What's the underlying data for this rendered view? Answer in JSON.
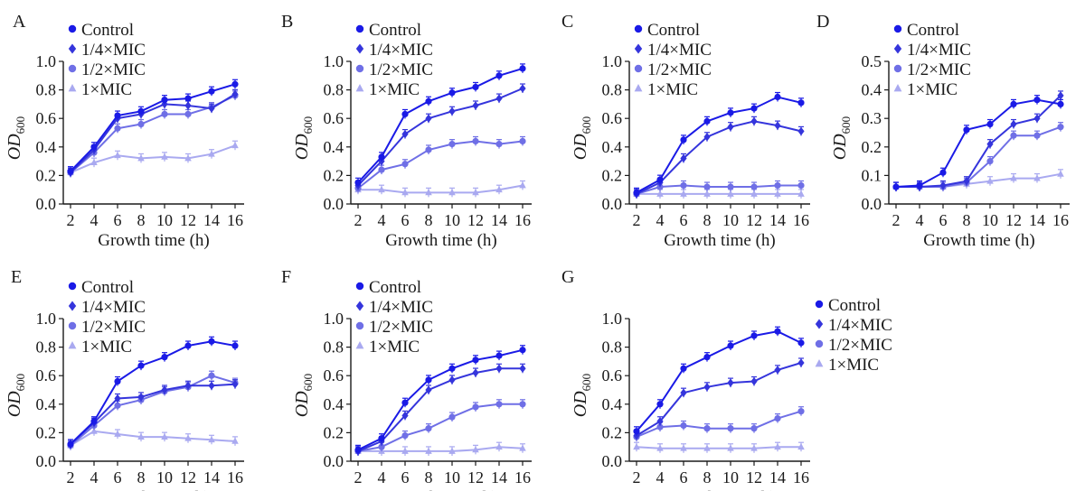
{
  "figure": {
    "x_label": "Growth time (h)",
    "y_label_main": "OD",
    "y_label_sub": "600",
    "series_styles": [
      {
        "name": "Control",
        "color": "#1a1ae6",
        "marker": "circle"
      },
      {
        "name": "1/4×MIC",
        "color": "#3535dc",
        "marker": "diamond"
      },
      {
        "name": "1/2×MIC",
        "color": "#6f6fe6",
        "marker": "circle"
      },
      {
        "name": "1×MIC",
        "color": "#a9a9f0",
        "marker": "triangle"
      }
    ]
  },
  "chart_data": [
    {
      "type": "line",
      "panel": "A",
      "x": [
        2,
        4,
        6,
        8,
        10,
        12,
        14,
        16
      ],
      "xticks": [
        "2",
        "4",
        "6",
        "8",
        "10",
        "12",
        "14",
        "16"
      ],
      "yticks": [
        "0.0",
        "0.2",
        "0.4",
        "0.6",
        "0.8",
        "1.0"
      ],
      "ylim": [
        0,
        1.0
      ],
      "legend_position": "top-left",
      "series": [
        {
          "name": "Control",
          "values": [
            0.23,
            0.4,
            0.62,
            0.65,
            0.73,
            0.74,
            0.79,
            0.84
          ]
        },
        {
          "name": "1/4×MIC",
          "values": [
            0.22,
            0.38,
            0.6,
            0.63,
            0.7,
            0.69,
            0.67,
            0.77
          ]
        },
        {
          "name": "1/2×MIC",
          "values": [
            0.22,
            0.36,
            0.53,
            0.56,
            0.63,
            0.63,
            0.68,
            0.76
          ]
        },
        {
          "name": "1×MIC",
          "values": [
            0.22,
            0.29,
            0.34,
            0.32,
            0.33,
            0.32,
            0.35,
            0.41
          ]
        }
      ]
    },
    {
      "type": "line",
      "panel": "B",
      "x": [
        2,
        4,
        6,
        8,
        10,
        12,
        14,
        16
      ],
      "xticks": [
        "2",
        "4",
        "6",
        "8",
        "10",
        "12",
        "14",
        "16"
      ],
      "yticks": [
        "0.0",
        "0.2",
        "0.4",
        "0.6",
        "0.8",
        "1.0"
      ],
      "ylim": [
        0,
        1.0
      ],
      "legend_position": "top-left",
      "series": [
        {
          "name": "Control",
          "values": [
            0.15,
            0.33,
            0.63,
            0.72,
            0.78,
            0.82,
            0.9,
            0.95
          ]
        },
        {
          "name": "1/4×MIC",
          "values": [
            0.13,
            0.3,
            0.49,
            0.6,
            0.65,
            0.69,
            0.74,
            0.81
          ]
        },
        {
          "name": "1/2×MIC",
          "values": [
            0.11,
            0.24,
            0.28,
            0.38,
            0.42,
            0.44,
            0.42,
            0.44
          ]
        },
        {
          "name": "1×MIC",
          "values": [
            0.1,
            0.1,
            0.08,
            0.08,
            0.08,
            0.08,
            0.1,
            0.13
          ]
        }
      ]
    },
    {
      "type": "line",
      "panel": "C",
      "x": [
        2,
        4,
        6,
        8,
        10,
        12,
        14,
        16
      ],
      "xticks": [
        "2",
        "4",
        "6",
        "8",
        "10",
        "12",
        "14",
        "16"
      ],
      "yticks": [
        "0.0",
        "0.2",
        "0.4",
        "0.6",
        "0.8",
        "1.0"
      ],
      "ylim": [
        0,
        1.0
      ],
      "legend_position": "top-left",
      "series": [
        {
          "name": "Control",
          "values": [
            0.08,
            0.17,
            0.45,
            0.58,
            0.64,
            0.67,
            0.75,
            0.71
          ]
        },
        {
          "name": "1/4×MIC",
          "values": [
            0.07,
            0.15,
            0.32,
            0.47,
            0.54,
            0.58,
            0.55,
            0.51
          ]
        },
        {
          "name": "1/2×MIC",
          "values": [
            0.07,
            0.12,
            0.13,
            0.12,
            0.12,
            0.12,
            0.13,
            0.13
          ]
        },
        {
          "name": "1×MIC",
          "values": [
            0.07,
            0.07,
            0.07,
            0.07,
            0.07,
            0.07,
            0.07,
            0.07
          ]
        }
      ]
    },
    {
      "type": "line",
      "panel": "D",
      "x": [
        2,
        4,
        6,
        8,
        10,
        12,
        14,
        16
      ],
      "xticks": [
        "2",
        "4",
        "6",
        "8",
        "10",
        "12",
        "14",
        "16"
      ],
      "yticks": [
        "0.0",
        "0.1",
        "0.2",
        "0.3",
        "0.4",
        "0.5"
      ],
      "ylim": [
        0,
        0.5
      ],
      "legend_position": "top-left",
      "series": [
        {
          "name": "Control",
          "values": [
            0.06,
            0.065,
            0.11,
            0.26,
            0.28,
            0.35,
            0.365,
            0.35
          ]
        },
        {
          "name": "1/4×MIC",
          "values": [
            0.06,
            0.06,
            0.065,
            0.08,
            0.21,
            0.28,
            0.3,
            0.38
          ]
        },
        {
          "name": "1/2×MIC",
          "values": [
            0.06,
            0.06,
            0.06,
            0.075,
            0.15,
            0.24,
            0.24,
            0.27
          ]
        },
        {
          "name": "1×MIC",
          "values": [
            0.06,
            0.06,
            0.06,
            0.07,
            0.08,
            0.09,
            0.09,
            0.105
          ]
        }
      ]
    },
    {
      "type": "line",
      "panel": "E",
      "x": [
        2,
        4,
        6,
        8,
        10,
        12,
        14,
        16
      ],
      "xticks": [
        "2",
        "4",
        "6",
        "8",
        "10",
        "12",
        "14",
        "16"
      ],
      "yticks": [
        "0.0",
        "0.2",
        "0.4",
        "0.6",
        "0.8",
        "1.0"
      ],
      "ylim": [
        0,
        1.0
      ],
      "legend_position": "top-left",
      "series": [
        {
          "name": "Control",
          "values": [
            0.12,
            0.28,
            0.56,
            0.67,
            0.73,
            0.81,
            0.84,
            0.81
          ]
        },
        {
          "name": "1/4×MIC",
          "values": [
            0.12,
            0.27,
            0.44,
            0.45,
            0.5,
            0.53,
            0.53,
            0.54
          ]
        },
        {
          "name": "1/2×MIC",
          "values": [
            0.11,
            0.25,
            0.39,
            0.43,
            0.49,
            0.52,
            0.6,
            0.55
          ]
        },
        {
          "name": "1×MIC",
          "values": [
            0.11,
            0.21,
            0.19,
            0.17,
            0.17,
            0.16,
            0.15,
            0.14
          ]
        }
      ]
    },
    {
      "type": "line",
      "panel": "F",
      "x": [
        2,
        4,
        6,
        8,
        10,
        12,
        14,
        16
      ],
      "xticks": [
        "2",
        "4",
        "6",
        "8",
        "10",
        "12",
        "14",
        "16"
      ],
      "yticks": [
        "0.0",
        "0.2",
        "0.4",
        "0.6",
        "0.8",
        "1.0"
      ],
      "ylim": [
        0,
        1.0
      ],
      "legend_position": "top-left",
      "series": [
        {
          "name": "Control",
          "values": [
            0.08,
            0.16,
            0.41,
            0.57,
            0.65,
            0.71,
            0.74,
            0.78
          ]
        },
        {
          "name": "1/4×MIC",
          "values": [
            0.07,
            0.14,
            0.32,
            0.5,
            0.57,
            0.62,
            0.65,
            0.65
          ]
        },
        {
          "name": "1/2×MIC",
          "values": [
            0.07,
            0.1,
            0.18,
            0.23,
            0.31,
            0.38,
            0.4,
            0.4
          ]
        },
        {
          "name": "1×MIC",
          "values": [
            0.07,
            0.07,
            0.07,
            0.07,
            0.07,
            0.08,
            0.1,
            0.09
          ]
        }
      ]
    },
    {
      "type": "line",
      "panel": "G",
      "x": [
        2,
        4,
        6,
        8,
        10,
        12,
        14,
        16
      ],
      "xticks": [
        "2",
        "4",
        "6",
        "8",
        "10",
        "12",
        "14",
        "16"
      ],
      "yticks": [
        "0.0",
        "0.2",
        "0.4",
        "0.6",
        "0.8",
        "1.0"
      ],
      "ylim": [
        0,
        1.0
      ],
      "legend_position": "right",
      "series": [
        {
          "name": "Control",
          "values": [
            0.21,
            0.4,
            0.65,
            0.73,
            0.81,
            0.88,
            0.91,
            0.83
          ]
        },
        {
          "name": "1/4×MIC",
          "values": [
            0.18,
            0.28,
            0.48,
            0.52,
            0.55,
            0.56,
            0.64,
            0.69
          ]
        },
        {
          "name": "1/2×MIC",
          "values": [
            0.17,
            0.24,
            0.25,
            0.23,
            0.23,
            0.23,
            0.3,
            0.35
          ]
        },
        {
          "name": "1×MIC",
          "values": [
            0.1,
            0.09,
            0.09,
            0.09,
            0.09,
            0.09,
            0.1,
            0.1
          ]
        }
      ]
    }
  ]
}
